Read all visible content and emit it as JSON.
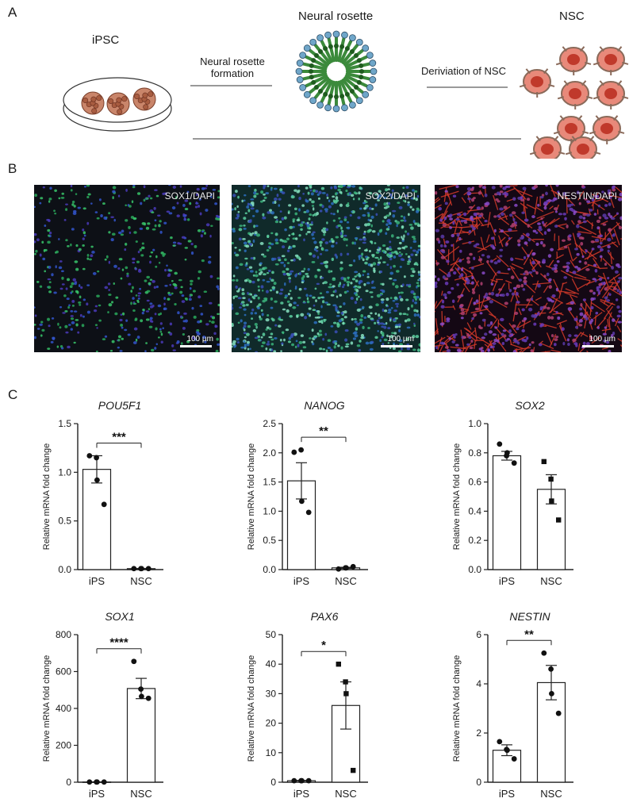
{
  "panels": {
    "a": "A",
    "b": "B",
    "c": "C"
  },
  "diagram": {
    "ipsc": "iPSC",
    "rosette": "Neural rosette",
    "nsc": "NSC",
    "step1_line1": "Neural rosette",
    "step1_line2": "formation",
    "step2": "Deriviation of NSC"
  },
  "micrographs": [
    {
      "label": "SOX1/DAPI",
      "scale": "100 µm"
    },
    {
      "label": "SOX2/DAPI",
      "scale": "100 µm"
    },
    {
      "label": "NESTIN/DAPI",
      "scale": "100 µm"
    }
  ],
  "colors": {
    "sox1_bg": "#0d1016",
    "sox2_bg": "#102a2a",
    "nestin_bg": "#140814"
  },
  "chart_data": [
    {
      "type": "bar",
      "title": "POU5F1",
      "ylabel": "Relative mRNA fold change",
      "categories": [
        "iPS",
        "NSC"
      ],
      "values": [
        1.03,
        0.01
      ],
      "errors": [
        0.14,
        0.002
      ],
      "ylim": [
        0,
        1.5
      ],
      "yticks": [
        "0.0",
        "0.5",
        "1.0",
        "1.5"
      ],
      "significance": "***",
      "points": [
        [
          1.17,
          1.15,
          0.92,
          0.67
        ],
        [
          0.01,
          0.01,
          0.01,
          0.01
        ]
      ],
      "markers": [
        "circle",
        "circle"
      ]
    },
    {
      "type": "bar",
      "title": "NANOG",
      "ylabel": "Relative mRNA fold change",
      "categories": [
        "iPS",
        "NSC"
      ],
      "values": [
        1.52,
        0.03
      ],
      "errors": [
        0.31,
        0.01
      ],
      "ylim": [
        0,
        2.5
      ],
      "yticks": [
        "0.0",
        "0.5",
        "1.0",
        "1.5",
        "2.0",
        "2.5"
      ],
      "significance": "**",
      "points": [
        [
          2.01,
          2.05,
          1.17,
          0.98
        ],
        [
          0.01,
          0.03,
          0.03,
          0.05
        ]
      ],
      "markers": [
        "circle",
        "circle"
      ]
    },
    {
      "type": "bar",
      "title": "SOX2",
      "ylabel": "Relative mRNA fold change",
      "categories": [
        "iPS",
        "NSC"
      ],
      "values": [
        0.78,
        0.55
      ],
      "errors": [
        0.03,
        0.1
      ],
      "ylim": [
        0,
        1.0
      ],
      "yticks": [
        "0.0",
        "0.2",
        "0.4",
        "0.6",
        "0.8",
        "1.0"
      ],
      "significance": "",
      "points": [
        [
          0.86,
          0.78,
          0.8,
          0.73
        ],
        [
          0.74,
          0.62,
          0.47,
          0.34
        ]
      ],
      "markers": [
        "circle",
        "square"
      ]
    },
    {
      "type": "bar",
      "title": "SOX1",
      "ylabel": "Relative mRNA fold change",
      "categories": [
        "iPS",
        "NSC"
      ],
      "values": [
        1,
        508
      ],
      "errors": [
        0.5,
        55
      ],
      "ylim": [
        0,
        800
      ],
      "yticks": [
        "0",
        "200",
        "400",
        "600",
        "800"
      ],
      "significance": "****",
      "points": [
        [
          1,
          1,
          1,
          1
        ],
        [
          655,
          505,
          465,
          455
        ]
      ],
      "markers": [
        "circle",
        "circle"
      ]
    },
    {
      "type": "bar",
      "title": "PAX6",
      "ylabel": "Relative mRNA fold change",
      "categories": [
        "iPS",
        "NSC"
      ],
      "values": [
        0.5,
        26
      ],
      "errors": [
        0.1,
        8
      ],
      "ylim": [
        0,
        50
      ],
      "yticks": [
        "0",
        "10",
        "20",
        "30",
        "40",
        "50"
      ],
      "significance": "*",
      "points": [
        [
          0.5,
          0.5,
          0.5,
          0.5
        ],
        [
          40,
          34,
          30,
          4
        ]
      ],
      "markers": [
        "circle",
        "square"
      ]
    },
    {
      "type": "bar",
      "title": "NESTIN",
      "ylabel": "Relative mRNA fold change",
      "categories": [
        "iPS",
        "NSC"
      ],
      "values": [
        1.3,
        4.05
      ],
      "errors": [
        0.22,
        0.7
      ],
      "ylim": [
        0,
        6
      ],
      "yticks": [
        "0",
        "2",
        "4",
        "6"
      ],
      "significance": "**",
      "points": [
        [
          1.65,
          1.33,
          1.3,
          0.95
        ],
        [
          5.25,
          4.6,
          3.6,
          2.8
        ]
      ],
      "markers": [
        "circle",
        "circle"
      ]
    }
  ]
}
